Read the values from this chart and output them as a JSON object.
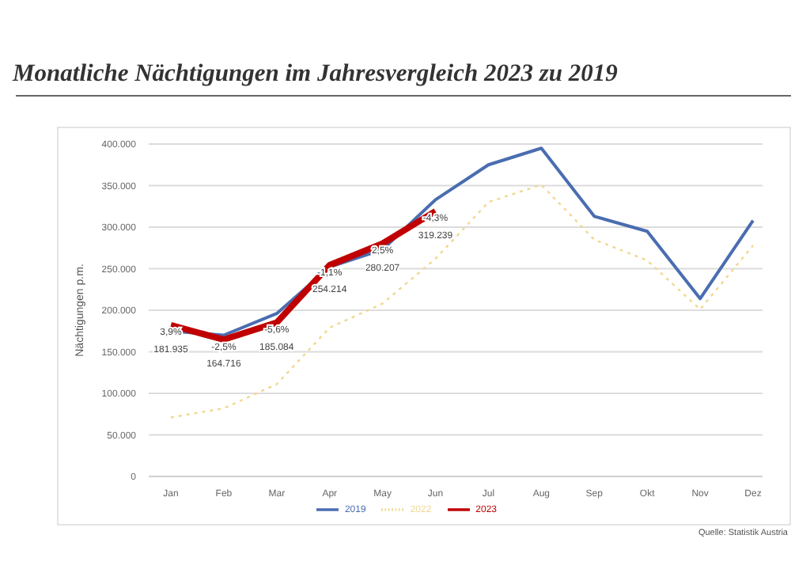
{
  "chart_data": {
    "type": "line",
    "title": "Monatliche Nächtigungen im Jahresvergleich 2023 zu 2019",
    "ylabel": "Nächtigungen p.m.",
    "categories": [
      "Jan",
      "Feb",
      "Mar",
      "Apr",
      "May",
      "Jun",
      "Jul",
      "Aug",
      "Sep",
      "Okt",
      "Nov",
      "Dez"
    ],
    "series": [
      {
        "name": "2019",
        "color": "#4a6db0",
        "values": [
          175000,
          170000,
          196000,
          252000,
          273000,
          333000,
          375000,
          395000,
          313000,
          295000,
          214000,
          308000
        ]
      },
      {
        "name": "2022",
        "color": "#f0d890",
        "line_style": "dotted",
        "values": [
          71000,
          82000,
          111000,
          179000,
          208000,
          262000,
          330000,
          351000,
          285000,
          260000,
          201000,
          278000
        ]
      },
      {
        "name": "2023",
        "color": "#c00000",
        "values": [
          181935,
          164716,
          185084,
          254214,
          280207,
          319239,
          null,
          null,
          null,
          null,
          null,
          null
        ],
        "value_labels": [
          "181.935",
          "164.716",
          "185.084",
          "254.214",
          "280.207",
          "319.239",
          null,
          null,
          null,
          null,
          null,
          null
        ]
      }
    ],
    "ylim": [
      0,
      400000
    ],
    "yticks": [
      {
        "value": 0,
        "label": "0"
      },
      {
        "value": 50000,
        "label": "50.000"
      },
      {
        "value": 100000,
        "label": "100.000"
      },
      {
        "value": 150000,
        "label": "150.000"
      },
      {
        "value": 200000,
        "label": "200.000"
      },
      {
        "value": 250000,
        "label": "250.000"
      },
      {
        "value": 300000,
        "label": "300.000"
      },
      {
        "value": 350000,
        "label": "350.000"
      },
      {
        "value": 400000,
        "label": "400.000"
      }
    ],
    "grid": "y",
    "legend": "bottom",
    "marker": "none",
    "line_style": "solid",
    "annotations": [
      {
        "text": "3,9%",
        "x": "Jan",
        "y": 181935
      },
      {
        "text": "-2,5%",
        "x": "Feb",
        "y": 164716
      },
      {
        "text": "-5,6%",
        "x": "Mar",
        "y": 185084
      },
      {
        "text": "-1,1%",
        "x": "Apr",
        "y": 254214
      },
      {
        "text": "2,5%",
        "x": "May",
        "y": 280207
      },
      {
        "text": "-4,3%",
        "x": "Jun",
        "y": 319239
      },
      "Quelle: Statistik Austria"
    ]
  }
}
